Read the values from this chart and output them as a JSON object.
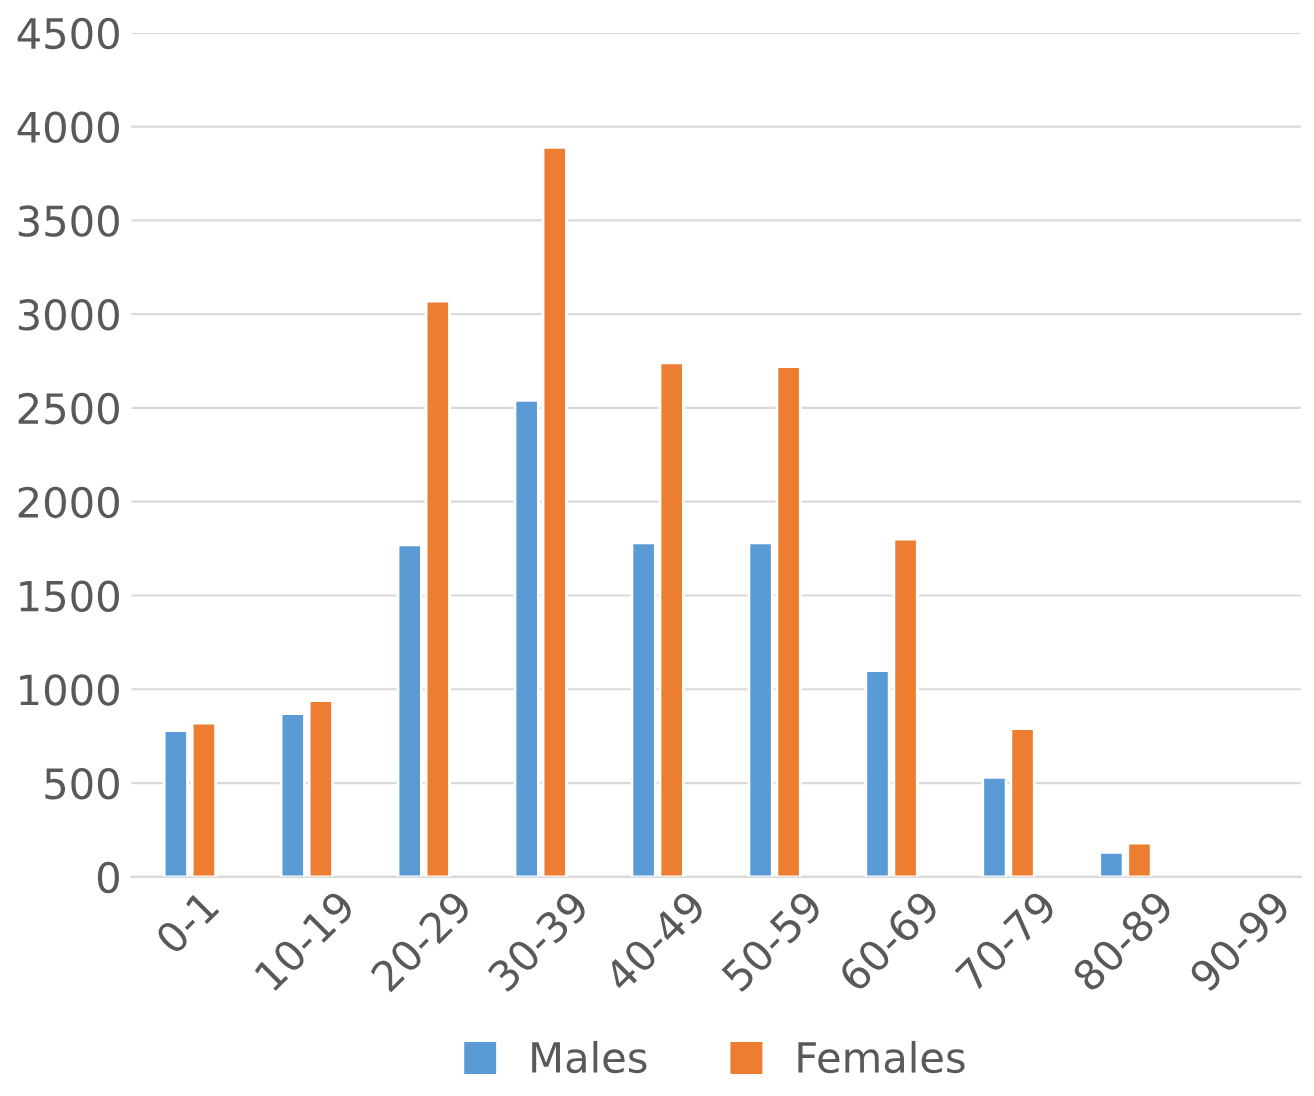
{
  "chart_data": {
    "type": "bar",
    "categories": [
      "0-1",
      "10-19",
      "20-29",
      "30-39",
      "40-49",
      "50-59",
      "60-69",
      "70-79",
      "80-89",
      "90-99"
    ],
    "series": [
      {
        "name": "Males",
        "color": "#5b9bd5",
        "values": [
          780,
          870,
          1770,
          2540,
          1780,
          1780,
          1100,
          530,
          130,
          null
        ]
      },
      {
        "name": "Females",
        "color": "#ed7d31",
        "values": [
          820,
          940,
          3070,
          3890,
          2740,
          2720,
          1800,
          790,
          180,
          null
        ]
      }
    ],
    "ylim": [
      0,
      4500
    ],
    "yticks": [
      0,
      500,
      1000,
      1500,
      2000,
      2500,
      3000,
      3500,
      4000,
      4500
    ],
    "grid": "y",
    "legend": "bottom"
  }
}
